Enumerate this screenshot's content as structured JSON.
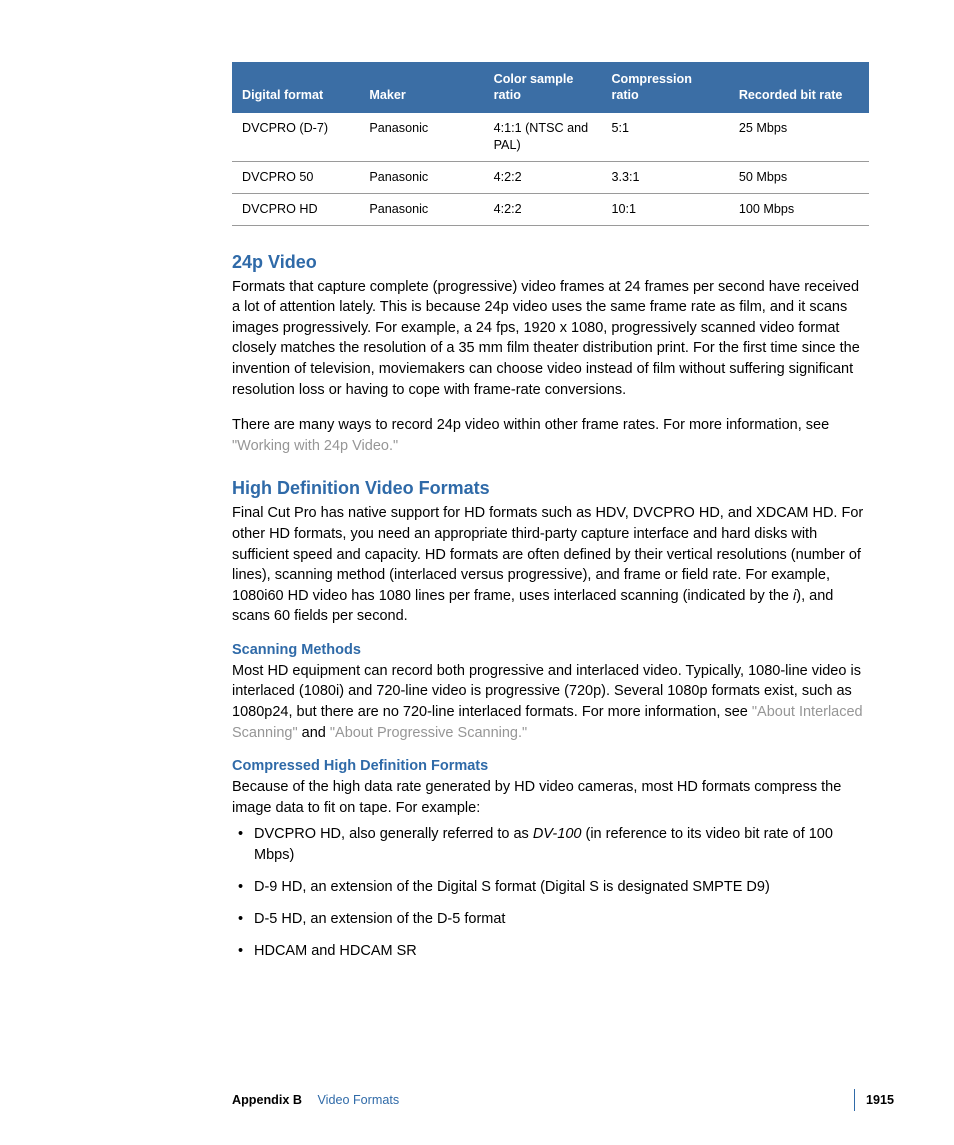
{
  "table": {
    "headers": [
      "Digital format",
      "Maker",
      "Color sample ratio",
      "Compression ratio",
      "Recorded bit rate"
    ],
    "rows": [
      [
        "DVCPRO (D-7)",
        "Panasonic",
        "4:1:1 (NTSC and PAL)",
        "5:1",
        "25 Mbps"
      ],
      [
        "DVCPRO 50",
        "Panasonic",
        "4:2:2",
        "3.3:1",
        "50 Mbps"
      ],
      [
        "DVCPRO HD",
        "Panasonic",
        "4:2:2",
        "10:1",
        "100 Mbps"
      ]
    ]
  },
  "section1": {
    "heading": "24p Video",
    "p1": "Formats that capture complete (progressive) video frames at 24 frames per second have received a lot of attention lately. This is because 24p video uses the same frame rate as film, and it scans images progressively. For example, a 24 fps, 1920 x 1080, progressively scanned video format closely matches the resolution of a 35 mm film theater distribution print. For the first time since the invention of television, moviemakers can choose video instead of film without suffering significant resolution loss or having to cope with frame-rate conversions.",
    "p2a": "There are many ways to record 24p video within other frame rates. For more information, see ",
    "p2link": "\"Working with 24p Video.\""
  },
  "section2": {
    "heading": "High Definition Video Formats",
    "p1a": "Final Cut Pro has native support for HD formats such as HDV, DVCPRO HD, and XDCAM HD. For other HD formats, you need an appropriate third-party capture interface and hard disks with sufficient speed and capacity. HD formats are often defined by their vertical resolutions (number of lines), scanning method (interlaced versus progressive), and frame or field rate. For example, 1080i60 HD video has 1080 lines per frame, uses interlaced scanning (indicated by the ",
    "p1i": "i",
    "p1b": "), and scans 60 fields per second."
  },
  "section3": {
    "heading": "Scanning Methods",
    "p1a": "Most HD equipment can record both progressive and interlaced video. Typically, 1080-line video is interlaced (1080i) and 720-line video is progressive (720p). Several 1080p formats exist, such as 1080p24, but there are no 720-line interlaced formats. For more information, see ",
    "link1": "\"About Interlaced Scanning\"",
    "mid": " and ",
    "link2": "\"About Progressive Scanning.\""
  },
  "section4": {
    "heading": "Compressed High Definition Formats",
    "p1": "Because of the high data rate generated by HD video cameras, most HD formats compress the image data to fit on tape. For example:",
    "bullets": {
      "b1a": "DVCPRO HD, also generally referred to as ",
      "b1i": "DV-100",
      "b1b": " (in reference to its video bit rate of 100 Mbps)",
      "b2": "D-9 HD, an extension of the Digital S format (Digital S is designated SMPTE D9)",
      "b3": "D-5 HD, an extension of the D-5 format",
      "b4": "HDCAM and HDCAM SR"
    }
  },
  "footer": {
    "appendix": "Appendix B",
    "title": "Video Formats",
    "page": "1915"
  }
}
